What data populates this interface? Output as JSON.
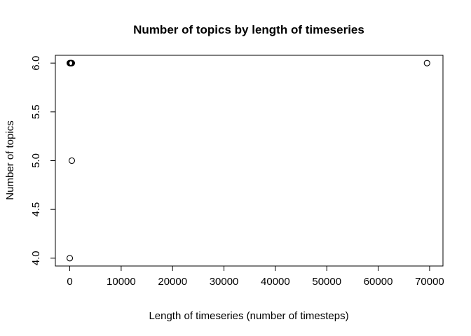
{
  "chart_data": {
    "type": "scatter",
    "title": "Number of topics by length of timeseries",
    "xlabel": "Length of timeseries (number of timesteps)",
    "ylabel": "Number of topics",
    "xlim": [
      -2800,
      72600
    ],
    "ylim": [
      3.92,
      6.08
    ],
    "x_ticks": [
      0,
      10000,
      20000,
      30000,
      40000,
      50000,
      60000,
      70000
    ],
    "x_tick_labels": [
      "0",
      "10000",
      "20000",
      "30000",
      "40000",
      "50000",
      "60000",
      "70000"
    ],
    "y_ticks": [
      4.0,
      4.5,
      5.0,
      5.5,
      6.0
    ],
    "y_tick_labels": [
      "4.0",
      "4.5",
      "5.0",
      "5.5",
      "6.0"
    ],
    "grid": false,
    "legend": "none",
    "marker": "open-circle",
    "points": [
      {
        "x": 0,
        "y": 4.0
      },
      {
        "x": 400,
        "y": 5.0
      },
      {
        "x": 0,
        "y": 6.0
      },
      {
        "x": 100,
        "y": 6.0
      },
      {
        "x": 200,
        "y": 6.0
      },
      {
        "x": 300,
        "y": 6.0
      },
      {
        "x": 400,
        "y": 6.0
      },
      {
        "x": 69500,
        "y": 6.0
      }
    ]
  }
}
